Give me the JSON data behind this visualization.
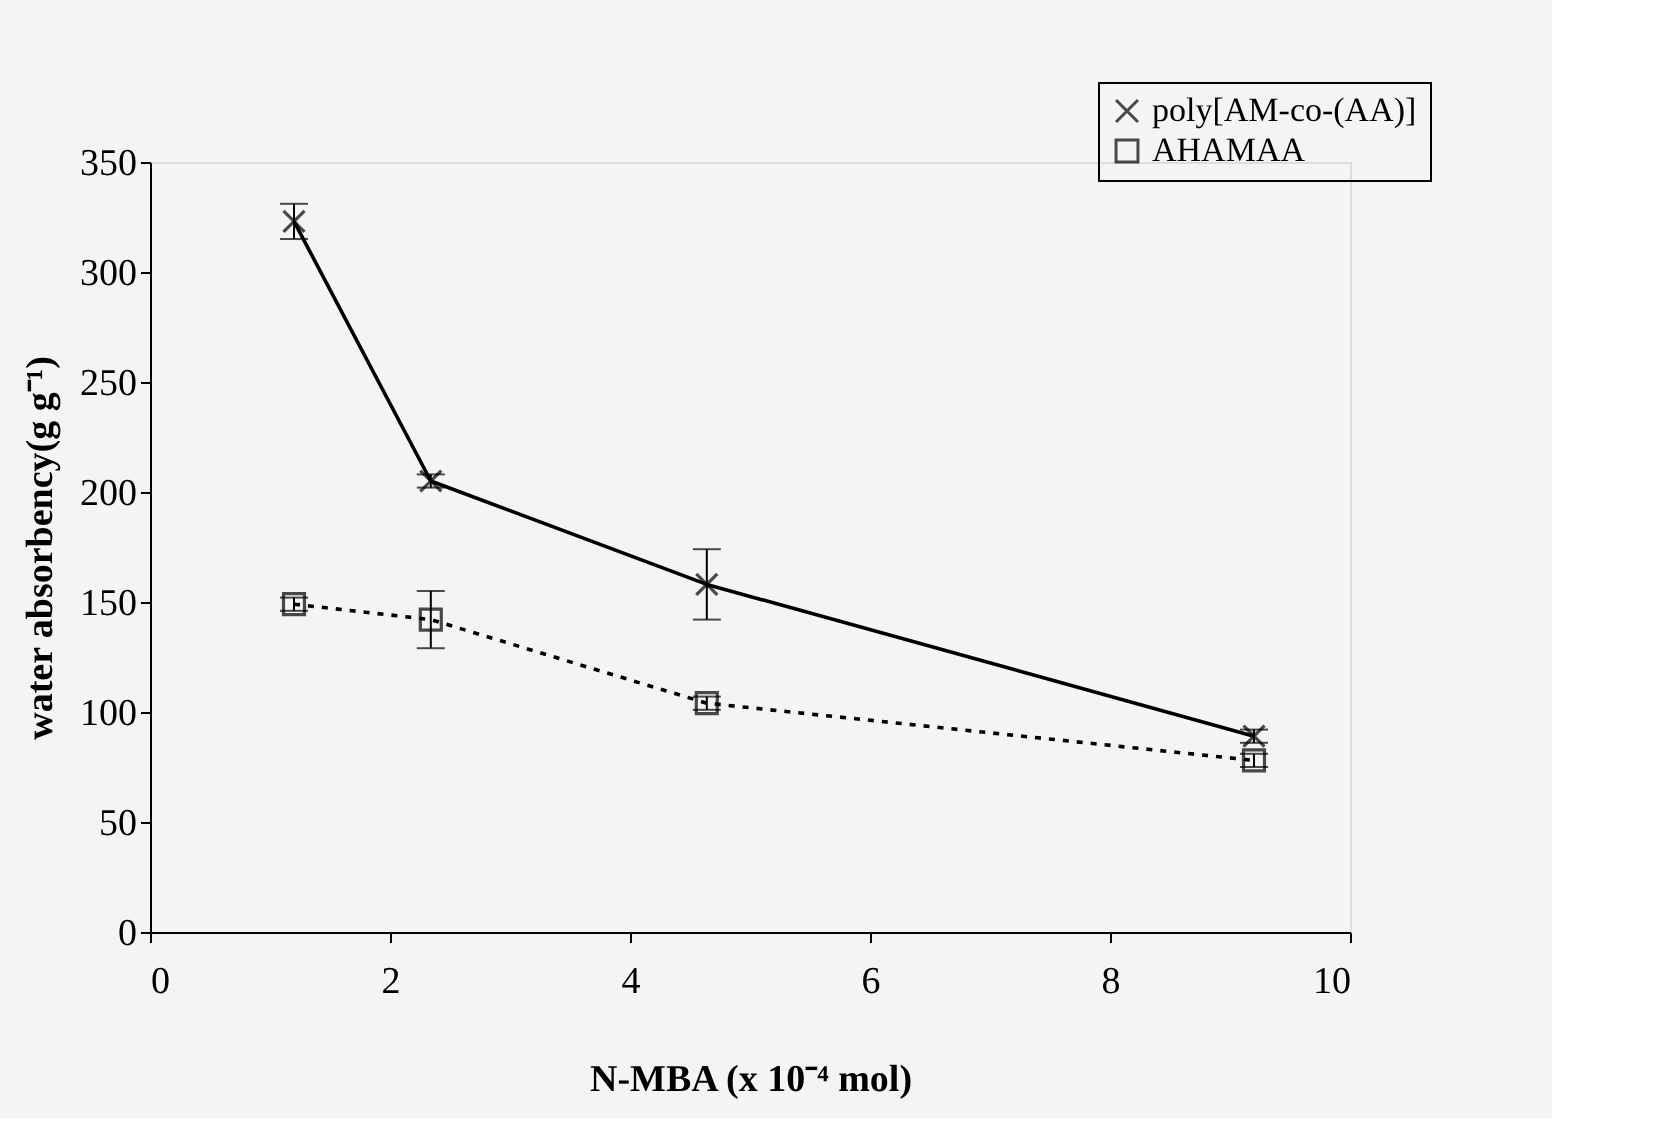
{
  "chart_data": {
    "type": "line",
    "xlabel": "N-MBA (x 10⁻⁴ mol)",
    "ylabel": "water absorbency(g g⁻¹)",
    "xlim": [
      0,
      10
    ],
    "ylim": [
      0,
      350
    ],
    "xticks": [
      0,
      2,
      4,
      6,
      8,
      10
    ],
    "yticks": [
      0,
      50,
      100,
      150,
      200,
      250,
      300,
      350
    ],
    "grid": false,
    "legend": "top right",
    "series": [
      {
        "name": "poly[AM-co-(AA)]",
        "color": "#000000",
        "marker": "cross",
        "line_style": "solid",
        "x": [
          1.2,
          2.34,
          4.64,
          9.2
        ],
        "values": [
          323,
          205,
          158,
          89
        ],
        "errors": [
          8,
          3,
          16,
          3
        ]
      },
      {
        "name": "AHAMAA",
        "color": "#000000",
        "marker": "square",
        "line_style": "dotted",
        "x": [
          1.2,
          2.34,
          4.64,
          9.2
        ],
        "values": [
          149,
          142,
          104,
          78
        ],
        "errors": [
          3,
          13,
          3,
          3
        ]
      }
    ]
  }
}
